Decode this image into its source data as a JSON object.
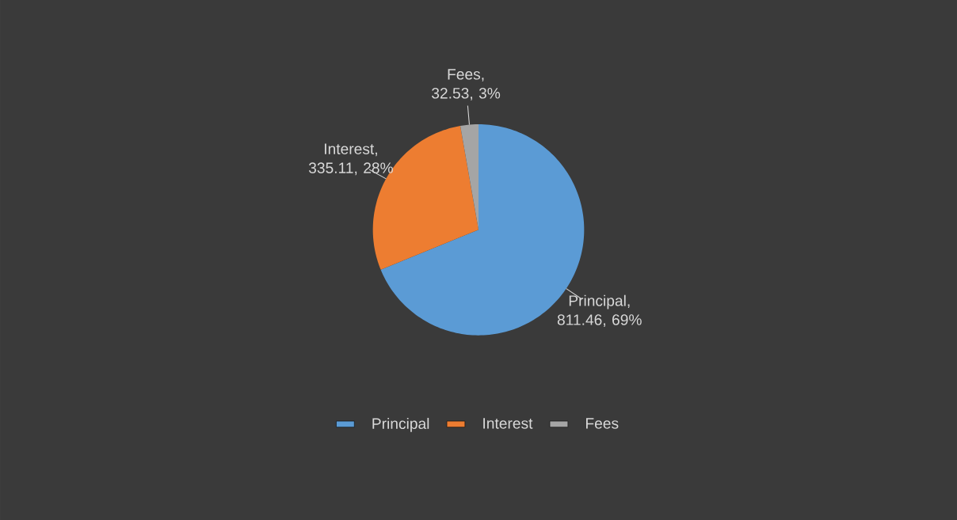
{
  "chart_data": {
    "type": "pie",
    "categories": [
      "Principal",
      "Interest",
      "Fees"
    ],
    "values": [
      811.46,
      335.11,
      32.53
    ],
    "colors": [
      "#5b9bd5",
      "#ed7d31",
      "#a5a5a5"
    ],
    "value_labels": [
      "Principal, 811.46, 69%",
      "Interest, 335.11, 28%",
      "Fees, 32.53, 3%"
    ],
    "legend": "bottom"
  }
}
